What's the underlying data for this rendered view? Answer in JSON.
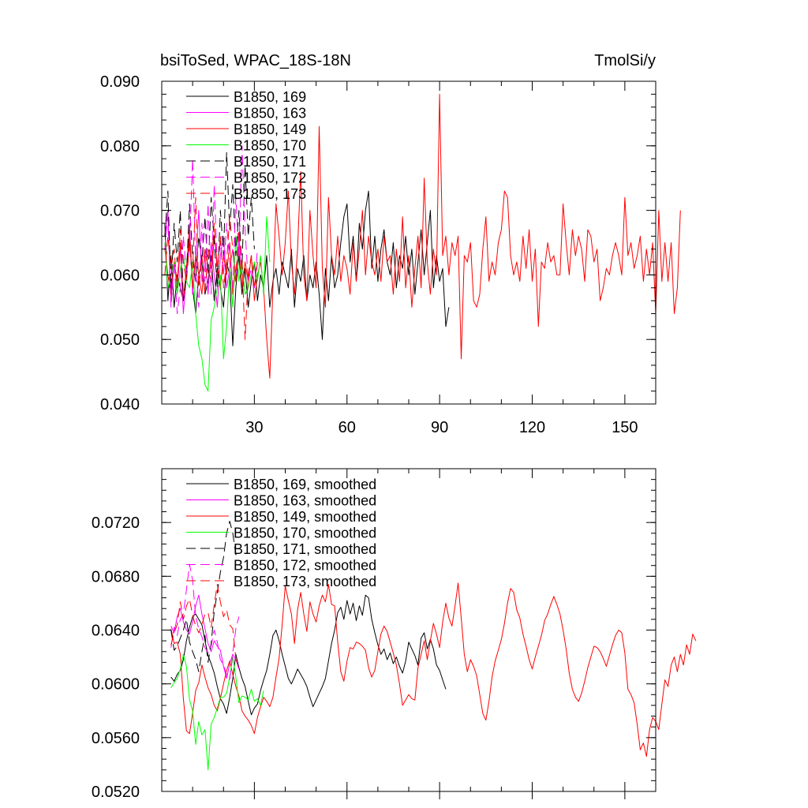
{
  "chart_data": [
    {
      "type": "line",
      "title_left": "bsiToSed, WPAC_18S-18N",
      "title_right": "TmolSi/y",
      "xlim": [
        0,
        160
      ],
      "ylim": [
        0.04,
        0.09
      ],
      "x_ticks": [
        30,
        60,
        90,
        120,
        150
      ],
      "x_tick_labels": [
        "30",
        "60",
        "90",
        "120",
        "150"
      ],
      "y_ticks": [
        0.04,
        0.05,
        0.06,
        0.07,
        0.08,
        0.09
      ],
      "y_tick_labels": [
        "0.040",
        "0.050",
        "0.060",
        "0.070",
        "0.080",
        "0.090"
      ],
      "legend_position": "top-left",
      "series": [
        {
          "name": "B1850, 169",
          "color": "#000000",
          "dash": "solid",
          "x0": 1,
          "values": [
            0.068,
            0.056,
            0.063,
            0.055,
            0.06,
            0.058,
            0.056,
            0.061,
            0.066,
            0.058,
            0.054,
            0.06,
            0.062,
            0.057,
            0.059,
            0.063,
            0.056,
            0.061,
            0.058,
            0.055,
            0.062,
            0.06,
            0.049,
            0.058,
            0.063,
            0.057,
            0.061,
            0.055,
            0.059,
            0.062,
            0.056,
            0.06,
            0.058,
            0.063,
            0.055,
            0.059,
            0.061,
            0.057,
            0.062,
            0.06,
            0.058,
            0.064,
            0.055,
            0.061,
            0.059,
            0.063,
            0.056,
            0.06,
            0.058,
            0.062,
            0.057,
            0.05,
            0.061,
            0.056,
            0.063,
            0.058,
            0.06,
            0.065,
            0.069,
            0.071,
            0.062,
            0.066,
            0.059,
            0.068,
            0.064,
            0.07,
            0.073,
            0.061,
            0.066,
            0.059,
            0.064,
            0.067,
            0.062,
            0.06,
            0.065,
            0.058,
            0.063,
            0.061,
            0.066,
            0.06,
            0.064,
            0.057,
            0.062,
            0.067,
            0.06,
            0.065,
            0.07,
            0.058,
            0.063,
            0.059,
            0.061,
            0.052,
            0.055
          ]
        },
        {
          "name": "B1850, 163",
          "color": "#ff00ff",
          "dash": "solid",
          "x0": 1,
          "values": [
            0.066,
            0.07,
            0.056,
            0.062,
            0.058,
            0.064,
            0.054,
            0.06,
            0.068,
            0.057,
            0.062,
            0.07,
            0.059,
            0.063,
            0.057,
            0.065,
            0.06,
            0.055,
            0.063,
            0.066,
            0.058,
            0.061,
            0.064,
            0.059,
            0.066,
            0.06
          ]
        },
        {
          "name": "B1850, 149",
          "color": "#ff0000",
          "dash": "solid",
          "x0": 1,
          "values": [
            0.064,
            0.06,
            0.057,
            0.062,
            0.059,
            0.065,
            0.056,
            0.061,
            0.067,
            0.058,
            0.063,
            0.06,
            0.057,
            0.064,
            0.061,
            0.059,
            0.066,
            0.062,
            0.058,
            0.063,
            0.06,
            0.065,
            0.057,
            0.061,
            0.064,
            0.058,
            0.062,
            0.059,
            0.063,
            0.056,
            0.06,
            0.062,
            0.058,
            0.05,
            0.044,
            0.058,
            0.071,
            0.066,
            0.06,
            0.065,
            0.073,
            0.062,
            0.057,
            0.064,
            0.076,
            0.06,
            0.056,
            0.07,
            0.063,
            0.058,
            0.083,
            0.061,
            0.055,
            0.072,
            0.063,
            0.06,
            0.066,
            0.059,
            0.063,
            0.061,
            0.057,
            0.065,
            0.059,
            0.064,
            0.07,
            0.06,
            0.066,
            0.062,
            0.06,
            0.064,
            0.059,
            0.066,
            0.062,
            0.063,
            0.057,
            0.064,
            0.059,
            0.069,
            0.058,
            0.063,
            0.055,
            0.061,
            0.066,
            0.058,
            0.075,
            0.062,
            0.057,
            0.064,
            0.06,
            0.088,
            0.063,
            0.066,
            0.06,
            0.065,
            0.063,
            0.066,
            0.047,
            0.063,
            0.062,
            0.065,
            0.056,
            0.055,
            0.057,
            0.064,
            0.069,
            0.059,
            0.062,
            0.06,
            0.065,
            0.067,
            0.073,
            0.072,
            0.063,
            0.06,
            0.062,
            0.059,
            0.066,
            0.061,
            0.067,
            0.059,
            0.064,
            0.052,
            0.062,
            0.061,
            0.065,
            0.062,
            0.063,
            0.06,
            0.06,
            0.071,
            0.065,
            0.06,
            0.067,
            0.063,
            0.066,
            0.064,
            0.059,
            0.067,
            0.066,
            0.062,
            0.064,
            0.056,
            0.058,
            0.061,
            0.06,
            0.063,
            0.065,
            0.063,
            0.06,
            0.072,
            0.063,
            0.065,
            0.061,
            0.063,
            0.066,
            0.059,
            0.064,
            0.06,
            0.065,
            0.054,
            0.07,
            0.059,
            0.065,
            0.059,
            0.065,
            0.054,
            0.058,
            0.07
          ]
        },
        {
          "name": "B1850, 170",
          "color": "#00ff00",
          "dash": "solid",
          "x0": 1,
          "values": [
            0.065,
            0.058,
            0.06,
            0.062,
            0.057,
            0.061,
            0.063,
            0.059,
            0.058,
            0.062,
            0.054,
            0.049,
            0.047,
            0.043,
            0.042,
            0.053,
            0.055,
            0.058,
            0.06,
            0.047,
            0.052,
            0.061,
            0.055,
            0.066,
            0.059,
            0.062,
            0.057,
            0.058,
            0.06,
            0.062,
            0.059,
            0.063,
            0.057,
            0.069,
            0.062
          ]
        },
        {
          "name": "B1850, 171",
          "color": "#000000",
          "dash": "dashed",
          "x0": 1,
          "values": [
            0.066,
            0.073,
            0.058,
            0.068,
            0.062,
            0.07,
            0.056,
            0.06,
            0.071,
            0.063,
            0.059,
            0.066,
            0.062,
            0.069,
            0.06,
            0.072,
            0.065,
            0.058,
            0.07,
            0.063,
            0.079,
            0.067,
            0.074,
            0.063,
            0.07,
            0.061,
            0.077,
            0.066,
            0.072,
            0.064
          ]
        },
        {
          "name": "B1850, 172",
          "color": "#ff00ff",
          "dash": "dashed",
          "x0": 1,
          "values": [
            0.064,
            0.069,
            0.055,
            0.062,
            0.054,
            0.058,
            0.066,
            0.06,
            0.064,
            0.078,
            0.062,
            0.055,
            0.068,
            0.059,
            0.071,
            0.057,
            0.074,
            0.061,
            0.065,
            0.06,
            0.068,
            0.062,
            0.058,
            0.072,
            0.063,
            0.08,
            0.067,
            0.059,
            0.061,
            0.058,
            0.064
          ]
        },
        {
          "name": "B1850, 173",
          "color": "#ff0000",
          "dash": "dashed",
          "x0": 1,
          "values": [
            0.06,
            0.066,
            0.061,
            0.064,
            0.058,
            0.067,
            0.062,
            0.059,
            0.065,
            0.061,
            0.072,
            0.058,
            0.063,
            0.057,
            0.064,
            0.061,
            0.068,
            0.06,
            0.066,
            0.058,
            0.062,
            0.069,
            0.064,
            0.059,
            0.067,
            0.062,
            0.05,
            0.06,
            0.063,
            0.058,
            0.062
          ]
        }
      ]
    },
    {
      "type": "line",
      "xlim": [
        0,
        160
      ],
      "ylim": [
        0.052,
        0.076
      ],
      "x_ticks": [
        30,
        60,
        90,
        120,
        150
      ],
      "y_ticks": [
        0.052,
        0.056,
        0.06,
        0.064,
        0.068,
        0.072
      ],
      "y_tick_labels": [
        "0.0520",
        "0.0560",
        "0.0600",
        "0.0640",
        "0.0680",
        "0.0720"
      ],
      "legend_position": "top-left",
      "series": [
        {
          "name": "B1850, 169, smoothed",
          "color": "#000000",
          "dash": "solid",
          "x0": 3,
          "values": [
            0.0605,
            0.0602,
            0.0607,
            0.061,
            0.0618,
            0.0632,
            0.0642,
            0.065,
            0.0652,
            0.0648,
            0.0644,
            0.0632,
            0.0621,
            0.0615,
            0.0608,
            0.0598,
            0.0589,
            0.0585,
            0.0578,
            0.059,
            0.0604,
            0.0622,
            0.0612,
            0.0604,
            0.0598,
            0.0587,
            0.0577,
            0.0582,
            0.0585,
            0.0595,
            0.0603,
            0.061,
            0.0622,
            0.0636,
            0.064,
            0.0632,
            0.0622,
            0.0613,
            0.0604,
            0.06,
            0.0605,
            0.0611,
            0.0607,
            0.0603,
            0.0598,
            0.059,
            0.0583,
            0.0588,
            0.0593,
            0.0598,
            0.0604,
            0.0617,
            0.063,
            0.064,
            0.0653,
            0.0657,
            0.0648,
            0.0662,
            0.0652,
            0.066,
            0.0647,
            0.0658,
            0.0651,
            0.0666,
            0.0664,
            0.0648,
            0.0638,
            0.0629,
            0.0622,
            0.0626,
            0.0618,
            0.0623,
            0.0615,
            0.062,
            0.0613,
            0.0608,
            0.0617,
            0.0631,
            0.0626,
            0.0621,
            0.0614,
            0.0634,
            0.0638,
            0.0626,
            0.0633,
            0.0626,
            0.0614,
            0.061,
            0.0603,
            0.0596
          ]
        },
        {
          "name": "B1850, 163, smoothed",
          "color": "#ff00ff",
          "dash": "solid",
          "x0": 3,
          "values": [
            0.0643,
            0.0638,
            0.065,
            0.0656,
            0.0646,
            0.064,
            0.0637,
            0.0646,
            0.0658,
            0.0666,
            0.0652,
            0.0641,
            0.063,
            0.0624,
            0.0632,
            0.0628,
            0.0625,
            0.0613,
            0.0604,
            0.0615,
            0.0622,
            0.0618,
            0.0611
          ]
        },
        {
          "name": "B1850, 149, smoothed",
          "color": "#ff0000",
          "dash": "solid",
          "x0": 3,
          "values": [
            0.0641,
            0.063,
            0.0631,
            0.0622,
            0.0589,
            0.0565,
            0.0563,
            0.0578,
            0.0595,
            0.0601,
            0.0614,
            0.0605,
            0.0597,
            0.0592,
            0.0584,
            0.058,
            0.0589,
            0.06,
            0.061,
            0.0617,
            0.0607,
            0.0598,
            0.0591,
            0.058,
            0.0576,
            0.0573,
            0.0569,
            0.0563,
            0.0575,
            0.0583,
            0.059,
            0.0587,
            0.0583,
            0.059,
            0.0605,
            0.0619,
            0.0644,
            0.0673,
            0.0662,
            0.0652,
            0.063,
            0.0655,
            0.0668,
            0.0652,
            0.0639,
            0.0661,
            0.0652,
            0.0646,
            0.0658,
            0.0666,
            0.0661,
            0.0674,
            0.0659,
            0.0658,
            0.0631,
            0.0609,
            0.0602,
            0.0617,
            0.0627,
            0.0626,
            0.0631,
            0.063,
            0.0628,
            0.0625,
            0.0612,
            0.0605,
            0.061,
            0.0624,
            0.0637,
            0.0643,
            0.0639,
            0.0631,
            0.0623,
            0.0614,
            0.06,
            0.0584,
            0.0588,
            0.0592,
            0.0589,
            0.0588,
            0.0612,
            0.0622,
            0.0632,
            0.0618,
            0.0632,
            0.0645,
            0.0637,
            0.0627,
            0.0646,
            0.066,
            0.0649,
            0.0643,
            0.0658,
            0.0675,
            0.0649,
            0.0622,
            0.0609,
            0.0618,
            0.0613,
            0.0606,
            0.0592,
            0.0578,
            0.0573,
            0.0587,
            0.0605,
            0.0617,
            0.0625,
            0.0633,
            0.0645,
            0.066,
            0.0671,
            0.0668,
            0.0655,
            0.0649,
            0.0637,
            0.0628,
            0.0618,
            0.0611,
            0.062,
            0.0628,
            0.0636,
            0.0647,
            0.0652,
            0.0659,
            0.0665,
            0.0659,
            0.0652,
            0.064,
            0.0626,
            0.0608,
            0.0596,
            0.059,
            0.0587,
            0.0593,
            0.0602,
            0.0612,
            0.062,
            0.0628,
            0.0627,
            0.0624,
            0.0619,
            0.0613,
            0.0621,
            0.0629,
            0.0636,
            0.064,
            0.0638,
            0.0623,
            0.0596,
            0.0592,
            0.0586,
            0.057,
            0.0551,
            0.0556,
            0.0546,
            0.0566,
            0.0575,
            0.0572,
            0.0566,
            0.0585,
            0.0603,
            0.0598,
            0.0614,
            0.062,
            0.0609,
            0.0622,
            0.0614,
            0.0629,
            0.0622,
            0.0637,
            0.0632
          ]
        },
        {
          "name": "B1850, 170, smoothed",
          "color": "#00ff00",
          "dash": "solid",
          "x0": 3,
          "values": [
            0.0597,
            0.0601,
            0.0604,
            0.0611,
            0.0622,
            0.0613,
            0.0588,
            0.058,
            0.0555,
            0.0572,
            0.0562,
            0.0566,
            0.0536,
            0.057,
            0.0575,
            0.0582,
            0.059,
            0.059,
            0.0593,
            0.0605,
            0.062,
            0.0605,
            0.0586,
            0.0591,
            0.059,
            0.0588,
            0.0596,
            0.0587,
            0.0589,
            0.0584,
            0.0595
          ]
        },
        {
          "name": "B1850, 171, smoothed",
          "color": "#000000",
          "dash": "dashed",
          "x0": 3,
          "values": [
            0.064,
            0.0625,
            0.0628,
            0.0634,
            0.064,
            0.0648,
            0.0631,
            0.0624,
            0.0618,
            0.0609,
            0.0624,
            0.0636,
            0.0616,
            0.063,
            0.0654,
            0.0668,
            0.0683,
            0.0694,
            0.0712,
            0.0721,
            0.0712,
            0.0696,
            0.0701
          ]
        },
        {
          "name": "B1850, 172, smoothed",
          "color": "#ff00ff",
          "dash": "dashed",
          "x0": 3,
          "values": [
            0.0627,
            0.0642,
            0.0636,
            0.0648,
            0.0652,
            0.067,
            0.0689,
            0.0677,
            0.065,
            0.0641,
            0.0635,
            0.0627,
            0.0623,
            0.0628,
            0.064,
            0.0631,
            0.0618,
            0.0614,
            0.0607,
            0.0603,
            0.0623,
            0.0641,
            0.065
          ]
        },
        {
          "name": "B1850, 173, smoothed",
          "color": "#ff0000",
          "dash": "dashed",
          "x0": 3,
          "values": [
            0.0629,
            0.0638,
            0.0644,
            0.0661,
            0.0648,
            0.0658,
            0.0663,
            0.0651,
            0.0643,
            0.0638,
            0.0644,
            0.0652,
            0.0653,
            0.0642,
            0.0659,
            0.0674,
            0.0661,
            0.065,
            0.0655,
            0.0644,
            0.0641,
            0.0618,
            0.0613
          ]
        }
      ]
    }
  ]
}
